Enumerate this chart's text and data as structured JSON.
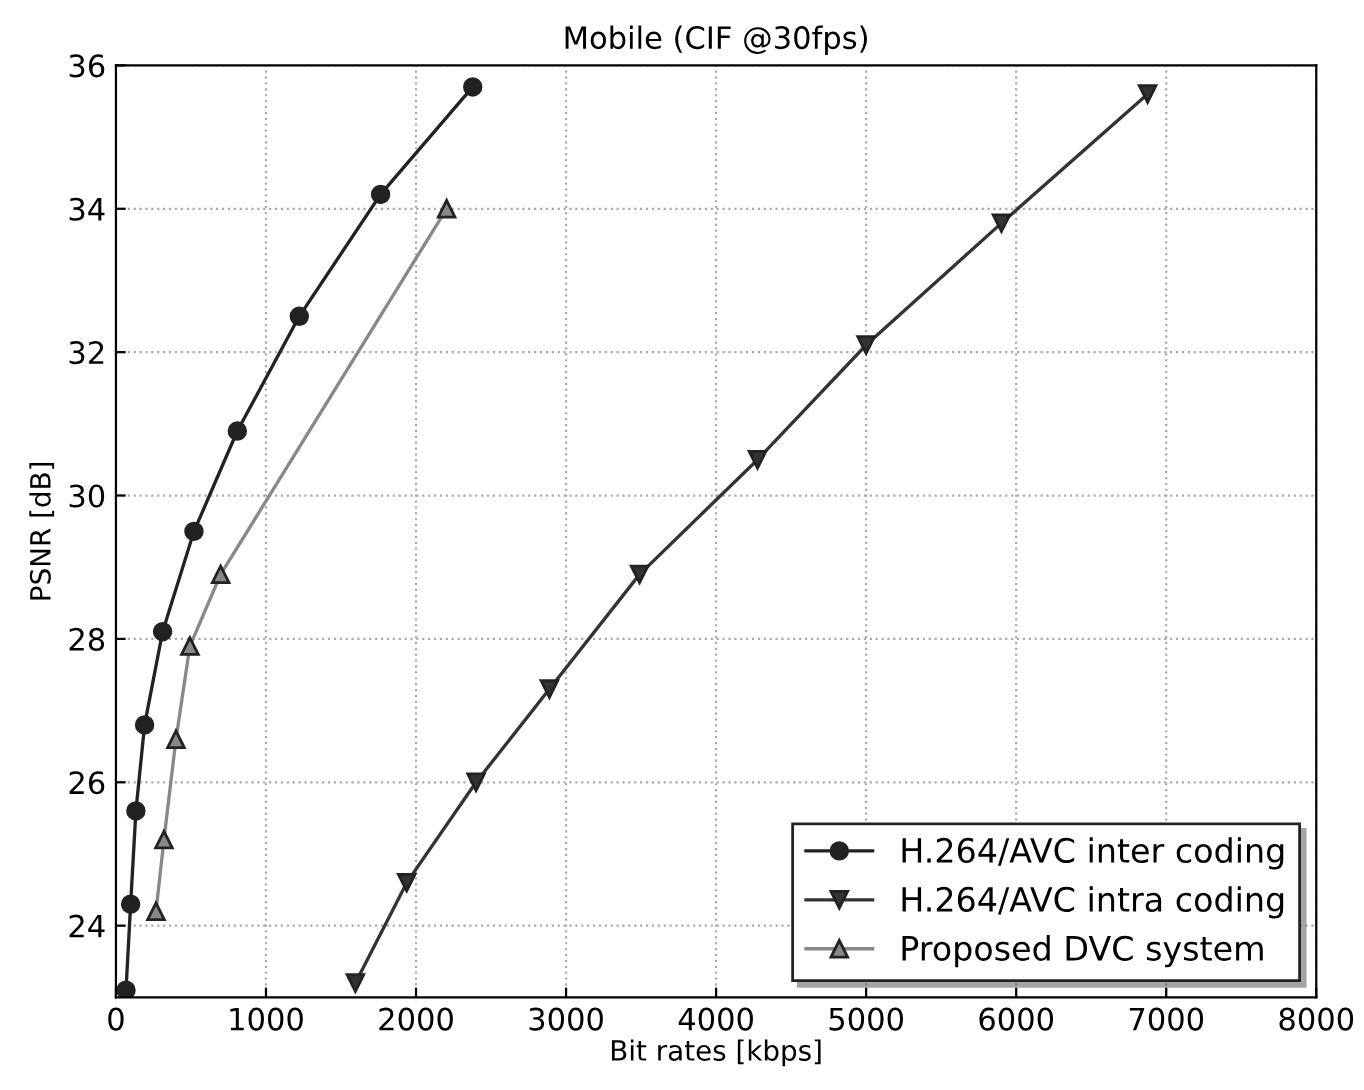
{
  "chart_data": {
    "type": "line",
    "title": "Mobile (CIF @30fps)",
    "xlabel": "Bit rates [kbps]",
    "ylabel": "PSNR [dB]",
    "xlim": [
      0,
      8000
    ],
    "ylim": [
      23,
      36
    ],
    "xticks": [
      0,
      1000,
      2000,
      3000,
      4000,
      5000,
      6000,
      7000,
      8000
    ],
    "yticks": [
      24,
      26,
      28,
      30,
      32,
      34,
      36
    ],
    "grid": true,
    "legend": "bottom right",
    "line_style": "solid",
    "series": [
      {
        "name": "H.264/AVC inter coding",
        "color": "#222222",
        "marker": "circle",
        "x": [
          67,
          98,
          133,
          191,
          311,
          520,
          809,
          1222,
          1764,
          2378
        ],
        "values": [
          23.1,
          24.3,
          25.6,
          26.8,
          28.1,
          29.5,
          30.9,
          32.5,
          34.2,
          35.7
        ]
      },
      {
        "name": "H.264/AVC intra coding",
        "color": "#333333",
        "marker": "triangle_down",
        "x": [
          1596,
          1938,
          2400,
          2889,
          3490,
          4276,
          5000,
          5902,
          6876
        ],
        "values": [
          23.2,
          24.6,
          26.0,
          27.3,
          28.9,
          30.5,
          32.1,
          33.8,
          35.6
        ]
      },
      {
        "name": "Proposed DVC system",
        "color": "#888888",
        "marker": "triangle",
        "x": [
          267,
          320,
          400,
          493,
          698,
          2204
        ],
        "values": [
          24.2,
          25.2,
          26.6,
          27.9,
          28.9,
          34.0
        ]
      }
    ]
  }
}
